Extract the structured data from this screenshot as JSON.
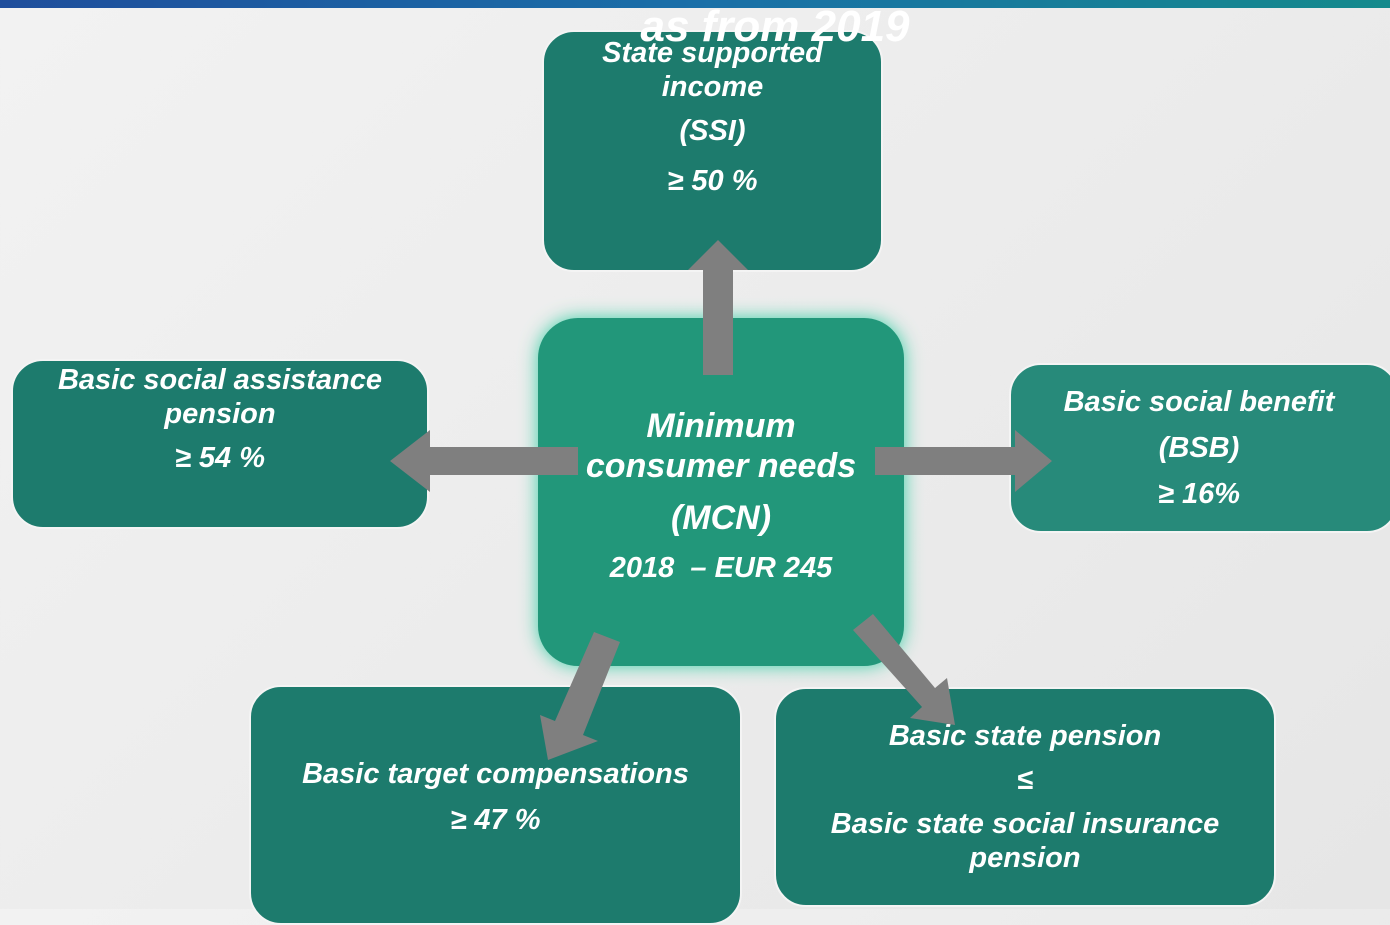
{
  "title": "as from 2019",
  "nodes": [
    {
      "lines": [
        "State supported",
        "income",
        "(SSI)",
        "≥ 50 %"
      ]
    },
    {
      "lines": [
        "Basic social assistance",
        "pension",
        "≥ 54 %"
      ]
    },
    {
      "lines": [
        "Minimum",
        "consumer needs",
        "(MCN)",
        "2018  – EUR 245"
      ]
    },
    {
      "lines": [
        "Basic social benefit",
        "(BSB)",
        "≥ 16%"
      ]
    },
    {
      "lines": [
        "Basic target compensations",
        "≥ 47 %"
      ]
    },
    {
      "lines": [
        "Basic state pension",
        "≤",
        "Basic state social insurance",
        "pension"
      ]
    }
  ]
}
